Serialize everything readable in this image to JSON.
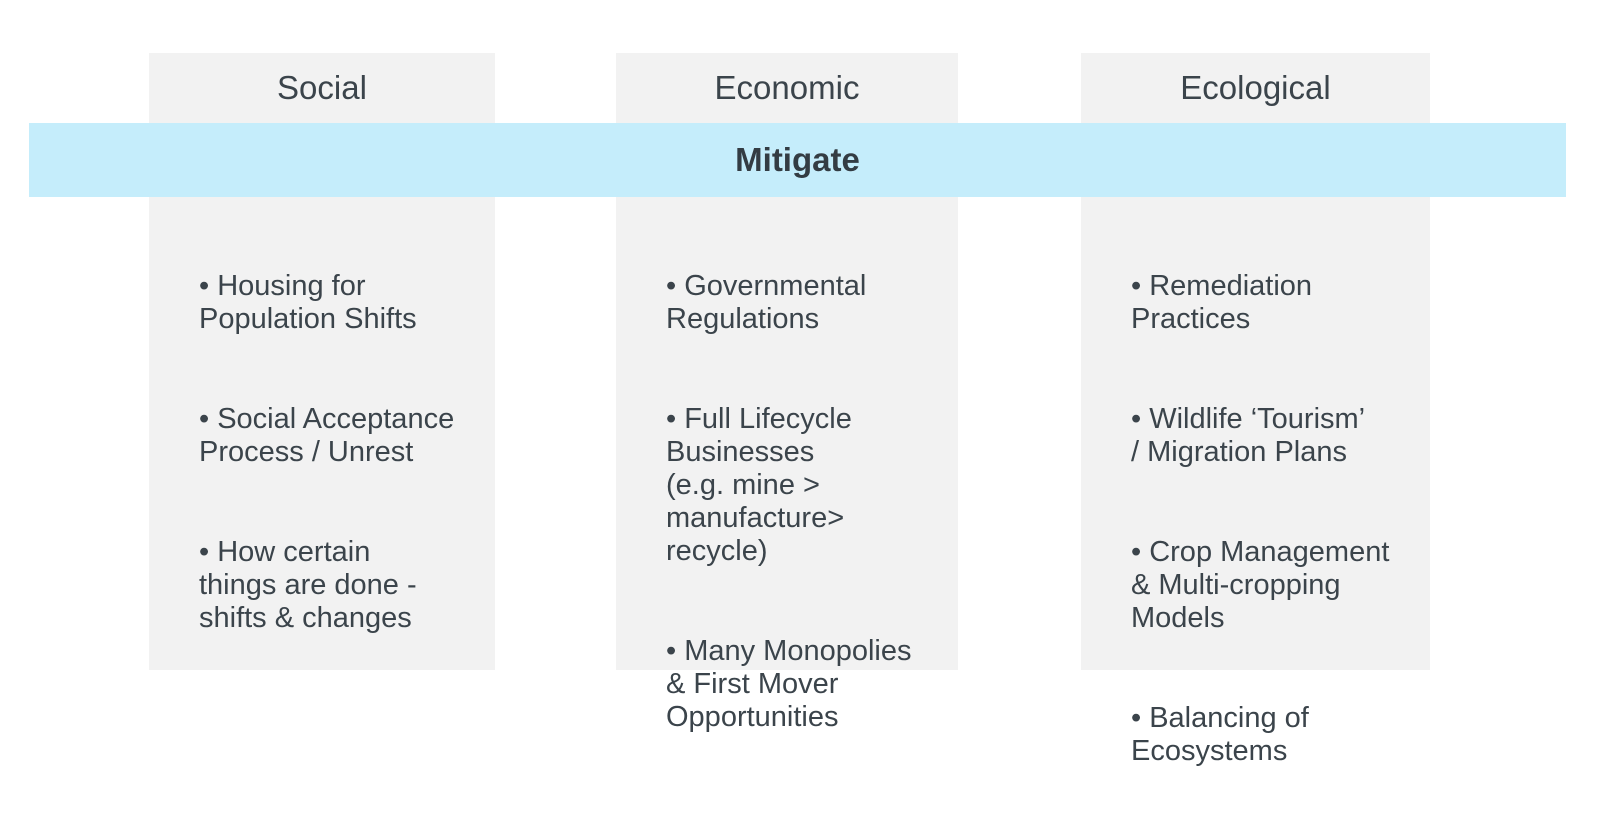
{
  "banner": {
    "label": "Mitigate",
    "background_color": "#c5edfb",
    "text_color": "#333c43"
  },
  "colors": {
    "page_background": "#ffffff",
    "column_background": "#f2f2f2",
    "body_text": "#3b444b"
  },
  "columns": [
    {
      "title": "Social",
      "bullets": [
        "• Housing for\nPopulation Shifts",
        "• Social Acceptance\nProcess / Unrest",
        "• How certain\nthings are done -\nshifts & changes"
      ]
    },
    {
      "title": "Economic",
      "bullets": [
        "• Governmental\nRegulations",
        "• Full Lifecycle\nBusinesses\n(e.g. mine >\nmanufacture>\nrecycle)",
        "• Many Monopolies\n& First Mover\nOpportunities"
      ]
    },
    {
      "title": "Ecological",
      "bullets": [
        "• Remediation\nPractices",
        "• Wildlife ‘Tourism’\n/ Migration Plans",
        "• Crop Management\n& Multi-cropping\nModels",
        "• Balancing of\nEcosystems"
      ]
    }
  ]
}
